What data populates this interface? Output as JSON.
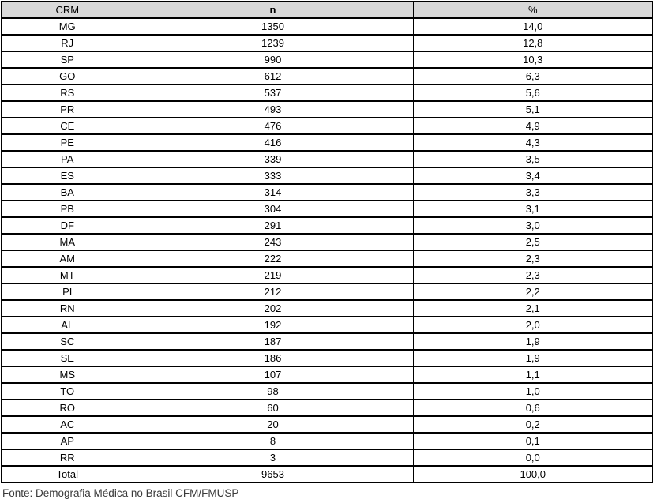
{
  "table": {
    "header_bg": "#d9d9d9",
    "border_color": "#000000",
    "headers": [
      "CRM",
      "n",
      "%"
    ],
    "rows": [
      {
        "crm": "MG",
        "n": "1350",
        "pct": "14,0"
      },
      {
        "crm": "RJ",
        "n": "1239",
        "pct": "12,8"
      },
      {
        "crm": "SP",
        "n": "990",
        "pct": "10,3"
      },
      {
        "crm": "GO",
        "n": "612",
        "pct": "6,3"
      },
      {
        "crm": "RS",
        "n": "537",
        "pct": "5,6"
      },
      {
        "crm": "PR",
        "n": "493",
        "pct": "5,1"
      },
      {
        "crm": "CE",
        "n": "476",
        "pct": "4,9"
      },
      {
        "crm": "PE",
        "n": "416",
        "pct": "4,3"
      },
      {
        "crm": "PA",
        "n": "339",
        "pct": "3,5"
      },
      {
        "crm": "ES",
        "n": "333",
        "pct": "3,4"
      },
      {
        "crm": "BA",
        "n": "314",
        "pct": "3,3"
      },
      {
        "crm": "PB",
        "n": "304",
        "pct": "3,1"
      },
      {
        "crm": "DF",
        "n": "291",
        "pct": "3,0"
      },
      {
        "crm": "MA",
        "n": "243",
        "pct": "2,5"
      },
      {
        "crm": "AM",
        "n": "222",
        "pct": "2,3"
      },
      {
        "crm": "MT",
        "n": "219",
        "pct": "2,3"
      },
      {
        "crm": "PI",
        "n": "212",
        "pct": "2,2"
      },
      {
        "crm": "RN",
        "n": "202",
        "pct": "2,1"
      },
      {
        "crm": "AL",
        "n": "192",
        "pct": "2,0"
      },
      {
        "crm": "SC",
        "n": "187",
        "pct": "1,9"
      },
      {
        "crm": "SE",
        "n": "186",
        "pct": "1,9"
      },
      {
        "crm": "MS",
        "n": "107",
        "pct": "1,1"
      },
      {
        "crm": "TO",
        "n": "98",
        "pct": "1,0"
      },
      {
        "crm": "RO",
        "n": "60",
        "pct": "0,6"
      },
      {
        "crm": "AC",
        "n": "20",
        "pct": "0,2"
      },
      {
        "crm": "AP",
        "n": "8",
        "pct": "0,1"
      },
      {
        "crm": "RR",
        "n": "3",
        "pct": "0,0"
      }
    ],
    "total": {
      "crm": "Total",
      "n": "9653",
      "pct": "100,0"
    }
  },
  "footer": {
    "source": "Fonte: Demografia Médica no Brasil CFM/FMUSP"
  },
  "chart_data": {
    "type": "table",
    "columns": [
      "CRM",
      "n",
      "%"
    ],
    "rows": [
      [
        "MG",
        1350,
        14.0
      ],
      [
        "RJ",
        1239,
        12.8
      ],
      [
        "SP",
        990,
        10.3
      ],
      [
        "GO",
        612,
        6.3
      ],
      [
        "RS",
        537,
        5.6
      ],
      [
        "PR",
        493,
        5.1
      ],
      [
        "CE",
        476,
        4.9
      ],
      [
        "PE",
        416,
        4.3
      ],
      [
        "PA",
        339,
        3.5
      ],
      [
        "ES",
        333,
        3.4
      ],
      [
        "BA",
        314,
        3.3
      ],
      [
        "PB",
        304,
        3.1
      ],
      [
        "DF",
        291,
        3.0
      ],
      [
        "MA",
        243,
        2.5
      ],
      [
        "AM",
        222,
        2.3
      ],
      [
        "MT",
        219,
        2.3
      ],
      [
        "PI",
        212,
        2.2
      ],
      [
        "RN",
        202,
        2.1
      ],
      [
        "AL",
        192,
        2.0
      ],
      [
        "SC",
        187,
        1.9
      ],
      [
        "SE",
        186,
        1.9
      ],
      [
        "MS",
        107,
        1.1
      ],
      [
        "TO",
        98,
        1.0
      ],
      [
        "RO",
        60,
        0.6
      ],
      [
        "AC",
        20,
        0.2
      ],
      [
        "AP",
        8,
        0.1
      ],
      [
        "RR",
        3,
        0.0
      ]
    ],
    "total_row": [
      "Total",
      9653,
      100.0
    ],
    "source": "Fonte: Demografia Médica no Brasil CFM/FMUSP",
    "notes": "Decimal comma formatting as displayed; header row shaded gray; column n header bold"
  }
}
